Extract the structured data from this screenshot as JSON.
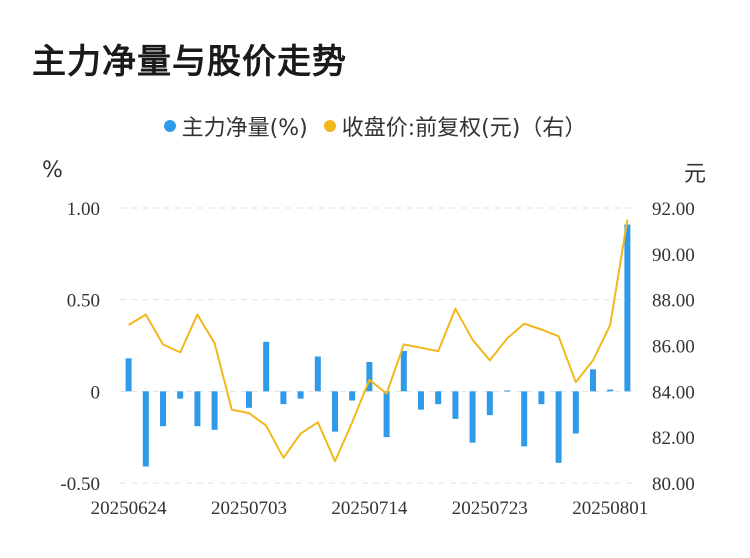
{
  "title": "主力净量与股价走势",
  "legend": {
    "series1": "主力净量(%)",
    "series2": "收盘价:前复权(元)（右）",
    "series1_color": "#2f9be8",
    "series2_color": "#f2b81b"
  },
  "units": {
    "left": "%",
    "right": "元"
  },
  "chart_data": {
    "type": "bar",
    "title": "主力净量与股价走势",
    "y_left": {
      "ticks": [
        "1.00",
        "0.50",
        "0",
        "-0.50"
      ],
      "range": [
        -0.5,
        1.0
      ]
    },
    "y_right": {
      "ticks": [
        "92.00",
        "90.00",
        "88.00",
        "86.00",
        "84.00",
        "82.00",
        "80.00"
      ],
      "range": [
        80,
        92
      ]
    },
    "x_tick_labels": [
      "20250624",
      "20250703",
      "20250714",
      "20250723",
      "20250801"
    ],
    "x_tick_index": [
      0,
      7,
      14,
      21,
      28
    ],
    "grid": "horizontal dashed",
    "legend_position": "top",
    "series": [
      {
        "name": "主力净量(%)",
        "type": "bar",
        "axis": "left",
        "color": "#2f9be8",
        "values": [
          0.18,
          -0.41,
          -0.19,
          -0.04,
          -0.19,
          -0.21,
          0.0,
          -0.09,
          0.27,
          -0.07,
          -0.04,
          0.19,
          -0.22,
          -0.05,
          0.16,
          -0.25,
          0.22,
          -0.1,
          -0.07,
          -0.15,
          -0.28,
          -0.13,
          0.005,
          -0.3,
          -0.07,
          -0.39,
          -0.23,
          0.12,
          0.01,
          0.91
        ]
      },
      {
        "name": "收盘价:前复权(元)（右）",
        "type": "line",
        "axis": "right",
        "color": "#f2b81b",
        "values": [
          86.9,
          87.35,
          86.05,
          85.7,
          87.35,
          86.1,
          83.2,
          83.05,
          82.5,
          81.1,
          82.15,
          82.65,
          80.95,
          82.65,
          84.5,
          83.9,
          86.05,
          85.9,
          85.75,
          87.6,
          86.25,
          85.35,
          86.3,
          86.95,
          86.7,
          86.4,
          84.4,
          85.35,
          86.9,
          91.5
        ]
      }
    ]
  }
}
